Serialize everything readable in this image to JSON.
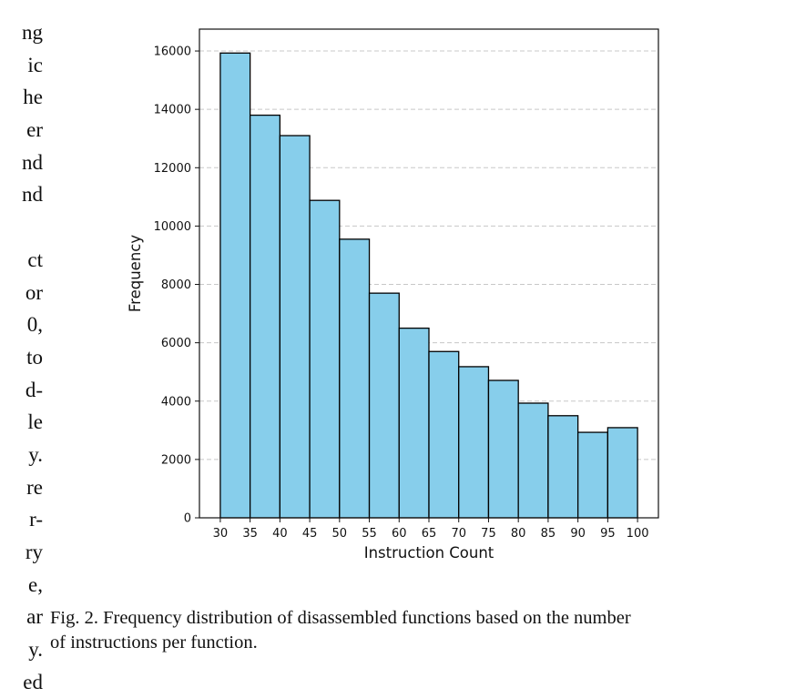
{
  "left_column_fragments": [
    "ng",
    "ic",
    "he",
    "er",
    "nd",
    "nd",
    "",
    "ct",
    "or",
    "0,",
    "to",
    "d-",
    "le",
    "y.",
    "re",
    "r-",
    "ry",
    "e,",
    "ar",
    "y.",
    "ed"
  ],
  "caption": {
    "line1": "Fig. 2.  Frequency distribution of disassembled functions based on the number",
    "line2": "of instructions per function."
  },
  "chart_data": {
    "type": "bar",
    "subtype": "histogram",
    "xlabel": "Instruction Count",
    "ylabel": "Frequency",
    "bin_edges": [
      30,
      35,
      40,
      45,
      50,
      55,
      60,
      65,
      70,
      75,
      80,
      85,
      90,
      95,
      100
    ],
    "values": [
      15930,
      13800,
      13100,
      10880,
      9550,
      7700,
      6500,
      5700,
      5180,
      4710,
      3930,
      3500,
      2930,
      3090
    ],
    "x_ticks": [
      "30",
      "35",
      "40",
      "45",
      "50",
      "55",
      "60",
      "65",
      "70",
      "75",
      "80",
      "85",
      "90",
      "95",
      "100"
    ],
    "y_ticks": [
      "0",
      "2000",
      "4000",
      "6000",
      "8000",
      "10000",
      "12000",
      "14000",
      "16000"
    ],
    "xlim": [
      26.5,
      103.5
    ],
    "ylim": [
      0,
      16750
    ],
    "grid": "y-dashed",
    "bar_color": "#87CEEB",
    "edge_color": "#000000"
  }
}
